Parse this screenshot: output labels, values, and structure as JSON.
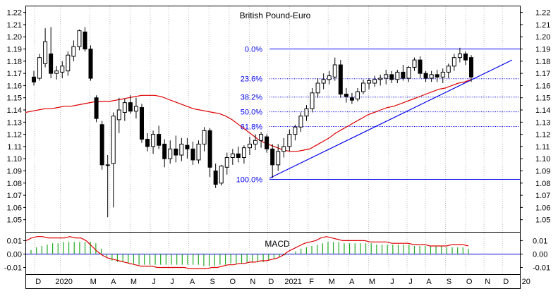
{
  "chart_data": {
    "type": "candlestick",
    "title": "British Pound-Euro",
    "ylim": [
      1.04,
      1.225
    ],
    "y_ticks": [
      1.22,
      1.21,
      1.2,
      1.19,
      1.18,
      1.17,
      1.16,
      1.15,
      1.14,
      1.13,
      1.12,
      1.11,
      1.1,
      1.09,
      1.08,
      1.07,
      1.06,
      1.05
    ],
    "y_tick_labels": [
      "1.22",
      "1.21",
      "1.20",
      "1.19",
      "1.18",
      "1.17",
      "1.16",
      "1.15",
      "1.14",
      "1.13",
      "1.12",
      "1.11",
      "1.10",
      "1.09",
      "1.08",
      "1.07",
      "1.06",
      "1.05"
    ],
    "x_labels": [
      "D",
      "2020",
      "M",
      "A",
      "M",
      "J",
      "J",
      "A",
      "S",
      "O",
      "N",
      "D",
      "2021",
      "F",
      "M",
      "A",
      "M",
      "J",
      "J",
      "A",
      "S",
      "O",
      "N",
      "D",
      "20"
    ],
    "x_label_positions": [
      7,
      21,
      37,
      48,
      59,
      70,
      80,
      91,
      102,
      113,
      124,
      134,
      146,
      156,
      167,
      178,
      189,
      200,
      210,
      220,
      231,
      242,
      252,
      262,
      273
    ],
    "candles": [
      {
        "o": 1.167,
        "h": 1.172,
        "l": 1.16,
        "c": 1.163
      },
      {
        "o": 1.166,
        "h": 1.186,
        "l": 1.164,
        "c": 1.183
      },
      {
        "o": 1.178,
        "h": 1.207,
        "l": 1.175,
        "c": 1.196
      },
      {
        "o": 1.186,
        "h": 1.208,
        "l": 1.166,
        "c": 1.17
      },
      {
        "o": 1.17,
        "h": 1.176,
        "l": 1.165,
        "c": 1.172
      },
      {
        "o": 1.171,
        "h": 1.18,
        "l": 1.166,
        "c": 1.176
      },
      {
        "o": 1.172,
        "h": 1.188,
        "l": 1.168,
        "c": 1.185
      },
      {
        "o": 1.184,
        "h": 1.197,
        "l": 1.18,
        "c": 1.192
      },
      {
        "o": 1.192,
        "h": 1.206,
        "l": 1.189,
        "c": 1.205
      },
      {
        "o": 1.204,
        "h": 1.208,
        "l": 1.188,
        "c": 1.19
      },
      {
        "o": 1.19,
        "h": 1.193,
        "l": 1.164,
        "c": 1.166
      },
      {
        "o": 1.15,
        "h": 1.152,
        "l": 1.13,
        "c": 1.133
      },
      {
        "o": 1.128,
        "h": 1.131,
        "l": 1.091,
        "c": 1.095
      },
      {
        "o": 1.095,
        "h": 1.103,
        "l": 1.052,
        "c": 1.095
      },
      {
        "o": 1.096,
        "h": 1.138,
        "l": 1.06,
        "c": 1.135
      },
      {
        "o": 1.132,
        "h": 1.15,
        "l": 1.121,
        "c": 1.14
      },
      {
        "o": 1.138,
        "h": 1.149,
        "l": 1.131,
        "c": 1.146
      },
      {
        "o": 1.146,
        "h": 1.152,
        "l": 1.137,
        "c": 1.139
      },
      {
        "o": 1.139,
        "h": 1.15,
        "l": 1.133,
        "c": 1.143
      },
      {
        "o": 1.142,
        "h": 1.145,
        "l": 1.113,
        "c": 1.116
      },
      {
        "o": 1.116,
        "h": 1.121,
        "l": 1.106,
        "c": 1.11
      },
      {
        "o": 1.11,
        "h": 1.123,
        "l": 1.104,
        "c": 1.12
      },
      {
        "o": 1.12,
        "h": 1.127,
        "l": 1.108,
        "c": 1.111
      },
      {
        "o": 1.112,
        "h": 1.116,
        "l": 1.093,
        "c": 1.1
      },
      {
        "o": 1.1,
        "h": 1.115,
        "l": 1.096,
        "c": 1.108
      },
      {
        "o": 1.108,
        "h": 1.119,
        "l": 1.097,
        "c": 1.103
      },
      {
        "o": 1.103,
        "h": 1.117,
        "l": 1.098,
        "c": 1.112
      },
      {
        "o": 1.111,
        "h": 1.117,
        "l": 1.1,
        "c": 1.108
      },
      {
        "o": 1.108,
        "h": 1.114,
        "l": 1.095,
        "c": 1.099
      },
      {
        "o": 1.099,
        "h": 1.115,
        "l": 1.096,
        "c": 1.112
      },
      {
        "o": 1.112,
        "h": 1.126,
        "l": 1.106,
        "c": 1.123
      },
      {
        "o": 1.123,
        "h": 1.125,
        "l": 1.085,
        "c": 1.093
      },
      {
        "o": 1.09,
        "h": 1.096,
        "l": 1.076,
        "c": 1.079
      },
      {
        "o": 1.08,
        "h": 1.095,
        "l": 1.078,
        "c": 1.094
      },
      {
        "o": 1.093,
        "h": 1.105,
        "l": 1.087,
        "c": 1.101
      },
      {
        "o": 1.101,
        "h": 1.108,
        "l": 1.095,
        "c": 1.104
      },
      {
        "o": 1.104,
        "h": 1.11,
        "l": 1.097,
        "c": 1.101
      },
      {
        "o": 1.101,
        "h": 1.111,
        "l": 1.096,
        "c": 1.109
      },
      {
        "o": 1.109,
        "h": 1.118,
        "l": 1.103,
        "c": 1.112
      },
      {
        "o": 1.112,
        "h": 1.12,
        "l": 1.107,
        "c": 1.115
      },
      {
        "o": 1.115,
        "h": 1.122,
        "l": 1.109,
        "c": 1.12
      },
      {
        "o": 1.118,
        "h": 1.12,
        "l": 1.105,
        "c": 1.108
      },
      {
        "o": 1.108,
        "h": 1.112,
        "l": 1.084,
        "c": 1.095
      },
      {
        "o": 1.095,
        "h": 1.112,
        "l": 1.09,
        "c": 1.106
      },
      {
        "o": 1.106,
        "h": 1.117,
        "l": 1.101,
        "c": 1.11
      },
      {
        "o": 1.11,
        "h": 1.124,
        "l": 1.106,
        "c": 1.12
      },
      {
        "o": 1.12,
        "h": 1.128,
        "l": 1.115,
        "c": 1.126
      },
      {
        "o": 1.126,
        "h": 1.138,
        "l": 1.122,
        "c": 1.135
      },
      {
        "o": 1.135,
        "h": 1.144,
        "l": 1.131,
        "c": 1.141
      },
      {
        "o": 1.141,
        "h": 1.158,
        "l": 1.138,
        "c": 1.154
      },
      {
        "o": 1.154,
        "h": 1.166,
        "l": 1.15,
        "c": 1.162
      },
      {
        "o": 1.162,
        "h": 1.17,
        "l": 1.157,
        "c": 1.165
      },
      {
        "o": 1.165,
        "h": 1.172,
        "l": 1.161,
        "c": 1.168
      },
      {
        "o": 1.167,
        "h": 1.183,
        "l": 1.164,
        "c": 1.177
      },
      {
        "o": 1.177,
        "h": 1.181,
        "l": 1.15,
        "c": 1.153
      },
      {
        "o": 1.153,
        "h": 1.158,
        "l": 1.146,
        "c": 1.151
      },
      {
        "o": 1.15,
        "h": 1.154,
        "l": 1.145,
        "c": 1.148
      },
      {
        "o": 1.149,
        "h": 1.158,
        "l": 1.147,
        "c": 1.155
      },
      {
        "o": 1.155,
        "h": 1.165,
        "l": 1.153,
        "c": 1.162
      },
      {
        "o": 1.162,
        "h": 1.166,
        "l": 1.157,
        "c": 1.164
      },
      {
        "o": 1.162,
        "h": 1.168,
        "l": 1.159,
        "c": 1.165
      },
      {
        "o": 1.165,
        "h": 1.169,
        "l": 1.16,
        "c": 1.166
      },
      {
        "o": 1.166,
        "h": 1.173,
        "l": 1.161,
        "c": 1.169
      },
      {
        "o": 1.169,
        "h": 1.172,
        "l": 1.162,
        "c": 1.165
      },
      {
        "o": 1.165,
        "h": 1.173,
        "l": 1.162,
        "c": 1.171
      },
      {
        "o": 1.171,
        "h": 1.177,
        "l": 1.164,
        "c": 1.166
      },
      {
        "o": 1.166,
        "h": 1.176,
        "l": 1.163,
        "c": 1.175
      },
      {
        "o": 1.175,
        "h": 1.183,
        "l": 1.172,
        "c": 1.181
      },
      {
        "o": 1.181,
        "h": 1.184,
        "l": 1.166,
        "c": 1.17
      },
      {
        "o": 1.17,
        "h": 1.172,
        "l": 1.163,
        "c": 1.166
      },
      {
        "o": 1.166,
        "h": 1.172,
        "l": 1.163,
        "c": 1.169
      },
      {
        "o": 1.169,
        "h": 1.173,
        "l": 1.163,
        "c": 1.167
      },
      {
        "o": 1.167,
        "h": 1.174,
        "l": 1.162,
        "c": 1.171
      },
      {
        "o": 1.171,
        "h": 1.178,
        "l": 1.166,
        "c": 1.176
      },
      {
        "o": 1.176,
        "h": 1.186,
        "l": 1.172,
        "c": 1.183
      },
      {
        "o": 1.183,
        "h": 1.191,
        "l": 1.179,
        "c": 1.186
      },
      {
        "o": 1.186,
        "h": 1.188,
        "l": 1.177,
        "c": 1.181
      },
      {
        "o": 1.183,
        "h": 1.185,
        "l": 1.163,
        "c": 1.167
      }
    ],
    "moving_average": {
      "color": "#dd0000",
      "values": [
        1.138,
        1.139,
        1.14,
        1.141,
        1.141,
        1.142,
        1.143,
        1.143,
        1.144,
        1.145,
        1.146,
        1.147,
        1.147,
        1.147,
        1.148,
        1.149,
        1.15,
        1.151,
        1.152,
        1.152,
        1.152,
        1.151,
        1.149,
        1.147,
        1.145,
        1.143,
        1.141,
        1.14,
        1.139,
        1.138,
        1.137,
        1.135,
        1.132,
        1.128,
        1.124,
        1.12,
        1.116,
        1.113,
        1.111,
        1.109,
        1.107,
        1.106,
        1.106,
        1.107,
        1.108,
        1.111,
        1.114,
        1.117,
        1.121,
        1.124,
        1.127,
        1.13,
        1.133,
        1.136,
        1.138,
        1.14,
        1.142,
        1.143,
        1.145,
        1.147,
        1.149,
        1.151,
        1.153,
        1.155,
        1.157,
        1.158,
        1.16,
        1.162,
        1.163,
        1.165
      ]
    },
    "fibonacci": {
      "color": "#0000ee",
      "levels": [
        {
          "label": "0.0%",
          "value": 1.19
        },
        {
          "label": "23.6%",
          "value": 1.1656
        },
        {
          "label": "38.2%",
          "value": 1.1506
        },
        {
          "label": "50.0%",
          "value": 1.1385
        },
        {
          "label": "61.8%",
          "value": 1.1264
        },
        {
          "label": "100.0%",
          "value": 1.0831
        }
      ]
    },
    "trendline": {
      "color": "#0000ee",
      "y_start": 1.084,
      "y_end": 1.181
    },
    "macd": {
      "label": "MACD",
      "ylim": [
        -0.015,
        0.016
      ],
      "y_ticks": [
        0.01,
        0.0,
        -0.01
      ],
      "y_tick_labels": [
        "0.01",
        "0.00",
        "-0.01"
      ],
      "histogram_color": "#22aa22",
      "line_color": "#dd0000",
      "histogram": [
        0.003,
        0.005,
        0.006,
        0.007,
        0.008,
        0.008,
        0.009,
        0.009,
        0.009,
        0.009,
        0.009,
        0.009,
        0.008,
        0.004,
        -0.002,
        -0.005,
        -0.006,
        -0.006,
        -0.007,
        -0.007,
        -0.008,
        -0.008,
        -0.008,
        -0.008,
        -0.008,
        -0.008,
        -0.008,
        -0.008,
        -0.008,
        -0.008,
        -0.008,
        -0.008,
        -0.009,
        -0.009,
        -0.009,
        -0.008,
        -0.008,
        -0.007,
        -0.007,
        -0.007,
        -0.006,
        -0.006,
        -0.006,
        -0.006,
        -0.005,
        -0.004,
        -0.002,
        -0.001,
        0.0,
        0.002,
        0.004,
        0.005,
        0.006,
        0.007,
        0.008,
        0.009,
        0.009,
        0.009,
        0.008,
        0.008,
        0.008,
        0.008,
        0.008,
        0.008,
        0.007,
        0.007,
        0.007,
        0.007,
        0.007,
        0.007,
        0.007,
        0.006,
        0.006,
        0.006,
        0.006,
        0.006,
        0.006,
        0.005,
        0.005,
        0.005,
        0.005,
        0.004
      ],
      "signal": [
        0.01,
        0.012,
        0.013,
        0.013,
        0.012,
        0.012,
        0.012,
        0.012,
        0.013,
        0.012,
        0.012,
        0.01,
        0.006,
        0.002,
        -0.001,
        -0.003,
        -0.004,
        -0.005,
        -0.006,
        -0.007,
        -0.008,
        -0.009,
        -0.009,
        -0.009,
        -0.01,
        -0.01,
        -0.01,
        -0.01,
        -0.01,
        -0.01,
        -0.011,
        -0.011,
        -0.011,
        -0.011,
        -0.01,
        -0.01,
        -0.009,
        -0.008,
        -0.008,
        -0.007,
        -0.007,
        -0.006,
        -0.006,
        -0.005,
        -0.005,
        -0.004,
        -0.003,
        -0.001,
        0.002,
        0.004,
        0.006,
        0.008,
        0.009,
        0.01,
        0.012,
        0.013,
        0.012,
        0.011,
        0.01,
        0.01,
        0.01,
        0.01,
        0.01,
        0.009,
        0.009,
        0.009,
        0.009,
        0.008,
        0.008,
        0.008,
        0.008,
        0.007,
        0.007,
        0.007,
        0.006,
        0.006,
        0.006,
        0.006,
        0.007,
        0.007,
        0.007,
        0.006
      ]
    }
  }
}
